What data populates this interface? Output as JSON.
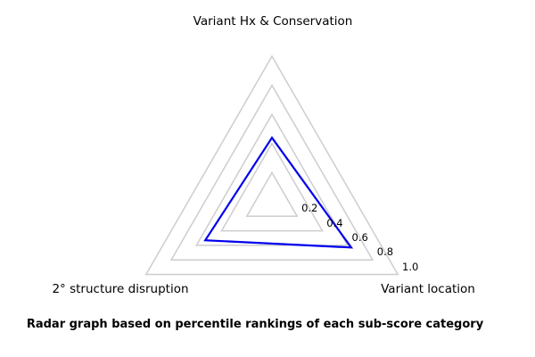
{
  "chart_data": {
    "type": "radar",
    "categories": [
      "Variant Hx & Conservation",
      "Variant location",
      "2° structure disruption"
    ],
    "series": [
      {
        "name": "percentile-rankings",
        "values": [
          0.44,
          0.63,
          0.53
        ]
      }
    ],
    "axis_angles_deg": [
      90,
      330,
      210
    ],
    "ticks": [
      0.2,
      0.4,
      0.6,
      0.8,
      1.0
    ],
    "tick_labels": [
      "0.2",
      "0.4",
      "0.6",
      "0.8",
      "1.0"
    ],
    "rlim": [
      0,
      1.0
    ],
    "grid": true,
    "legend": "none",
    "line_color": "#0000ee",
    "grid_color": "#cdcdcd",
    "text_color": "#000000",
    "background_color": "#ffffff",
    "caption": "Radar graph based on percentile rankings of each sub-score category"
  }
}
